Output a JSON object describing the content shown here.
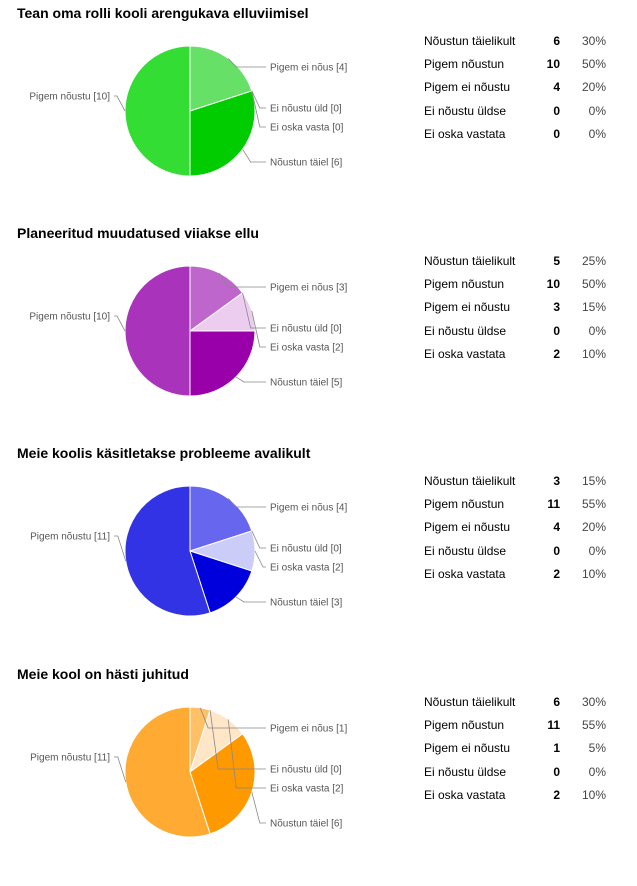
{
  "sections": [
    {
      "title": "Tean oma rolli kooli arengukava elluviimisel",
      "rows": [
        {
          "label": "Nõustun täielikult",
          "count": "6",
          "percent": "30%"
        },
        {
          "label": "Pigem nõustun",
          "count": "10",
          "percent": "50%"
        },
        {
          "label": "Pigem ei nõustu",
          "count": "4",
          "percent": "20%"
        },
        {
          "label": "Ei nõustu üldse",
          "count": "0",
          "percent": "0%"
        },
        {
          "label": "Ei oska vastata",
          "count": "0",
          "percent": "0%"
        }
      ]
    },
    {
      "title": "Planeeritud muudatused viiakse ellu",
      "rows": [
        {
          "label": "Nõustun täielikult",
          "count": "5",
          "percent": "25%"
        },
        {
          "label": "Pigem nõustun",
          "count": "10",
          "percent": "50%"
        },
        {
          "label": "Pigem ei nõustu",
          "count": "3",
          "percent": "15%"
        },
        {
          "label": "Ei nõustu üldse",
          "count": "0",
          "percent": "0%"
        },
        {
          "label": "Ei oska vastata",
          "count": "2",
          "percent": "10%"
        }
      ]
    },
    {
      "title": "Meie koolis käsitletakse probleeme avalikult",
      "rows": [
        {
          "label": "Nõustun täielikult",
          "count": "3",
          "percent": "15%"
        },
        {
          "label": "Pigem nõustun",
          "count": "11",
          "percent": "55%"
        },
        {
          "label": "Pigem ei nõustu",
          "count": "4",
          "percent": "20%"
        },
        {
          "label": "Ei nõustu üldse",
          "count": "0",
          "percent": "0%"
        },
        {
          "label": "Ei oska vastata",
          "count": "2",
          "percent": "10%"
        }
      ]
    },
    {
      "title": "Meie kool on hästi juhitud",
      "rows": [
        {
          "label": "Nõustun täielikult",
          "count": "6",
          "percent": "30%"
        },
        {
          "label": "Pigem nõustun",
          "count": "11",
          "percent": "55%"
        },
        {
          "label": "Pigem ei nõustu",
          "count": "1",
          "percent": "5%"
        },
        {
          "label": "Ei nõustu üldse",
          "count": "0",
          "percent": "0%"
        },
        {
          "label": "Ei oska vastata",
          "count": "2",
          "percent": "10%"
        }
      ]
    }
  ],
  "chart_data": [
    {
      "type": "pie",
      "title": "Tean oma rolli kooli arengukava elluviimisel",
      "slices": [
        {
          "name": "Pigem ei nõus",
          "value": 4,
          "label": "Pigem ei nõus [4]",
          "color": "#66e066"
        },
        {
          "name": "Ei nõustu üld",
          "value": 0,
          "label": "Ei nõustu üld [0]",
          "color": "#b3f0b3"
        },
        {
          "name": "Ei oska vasta",
          "value": 0,
          "label": "Ei oska vasta [0]",
          "color": "#d9f7d9"
        },
        {
          "name": "Nõustun täiel",
          "value": 6,
          "label": "Nõustun täiel [6]",
          "color": "#00cc00"
        },
        {
          "name": "Pigem nõustu",
          "value": 10,
          "label": "Pigem nõustu [10]",
          "color": "#33dd33"
        }
      ]
    },
    {
      "type": "pie",
      "title": "Planeeritud muudatused viiakse ellu",
      "slices": [
        {
          "name": "Pigem ei nõus",
          "value": 3,
          "label": "Pigem ei nõus [3]",
          "color": "#bf66cc"
        },
        {
          "name": "Ei nõustu üld",
          "value": 0,
          "label": "Ei nõustu üld [0]",
          "color": "#d9a6e0"
        },
        {
          "name": "Ei oska vasta",
          "value": 2,
          "label": "Ei oska vasta [2]",
          "color": "#eccdf0"
        },
        {
          "name": "Nõustun täiel",
          "value": 5,
          "label": "Nõustun täiel [5]",
          "color": "#9900aa"
        },
        {
          "name": "Pigem nõustu",
          "value": 10,
          "label": "Pigem nõustu [10]",
          "color": "#aa33bb"
        }
      ]
    },
    {
      "type": "pie",
      "title": "Meie koolis käsitletakse probleeme avalikult",
      "slices": [
        {
          "name": "Pigem ei nõus",
          "value": 4,
          "label": "Pigem ei nõus [4]",
          "color": "#6666ee"
        },
        {
          "name": "Ei nõustu üld",
          "value": 0,
          "label": "Ei nõustu üld [0]",
          "color": "#a6a6f5"
        },
        {
          "name": "Ei oska vasta",
          "value": 2,
          "label": "Ei oska vasta [2]",
          "color": "#ccccf8"
        },
        {
          "name": "Nõustun täiel",
          "value": 3,
          "label": "Nõustun täiel [3]",
          "color": "#0000dd"
        },
        {
          "name": "Pigem nõustu",
          "value": 11,
          "label": "Pigem nõustu [11]",
          "color": "#3333e6"
        }
      ]
    },
    {
      "type": "pie",
      "title": "Meie kool on hästi juhitud",
      "slices": [
        {
          "name": "Pigem ei nõus",
          "value": 1,
          "label": "Pigem ei nõus [1]",
          "color": "#ffc066"
        },
        {
          "name": "Ei nõustu üld",
          "value": 0,
          "label": "Ei nõustu üld [0]",
          "color": "#ffd699"
        },
        {
          "name": "Ei oska vasta",
          "value": 2,
          "label": "Ei oska vasta [2]",
          "color": "#ffe6c6"
        },
        {
          "name": "Nõustun täiel",
          "value": 6,
          "label": "Nõustun täiel [6]",
          "color": "#ff9900"
        },
        {
          "name": "Pigem nõustu",
          "value": 11,
          "label": "Pigem nõustu [11]",
          "color": "#ffaa33"
        }
      ]
    }
  ]
}
